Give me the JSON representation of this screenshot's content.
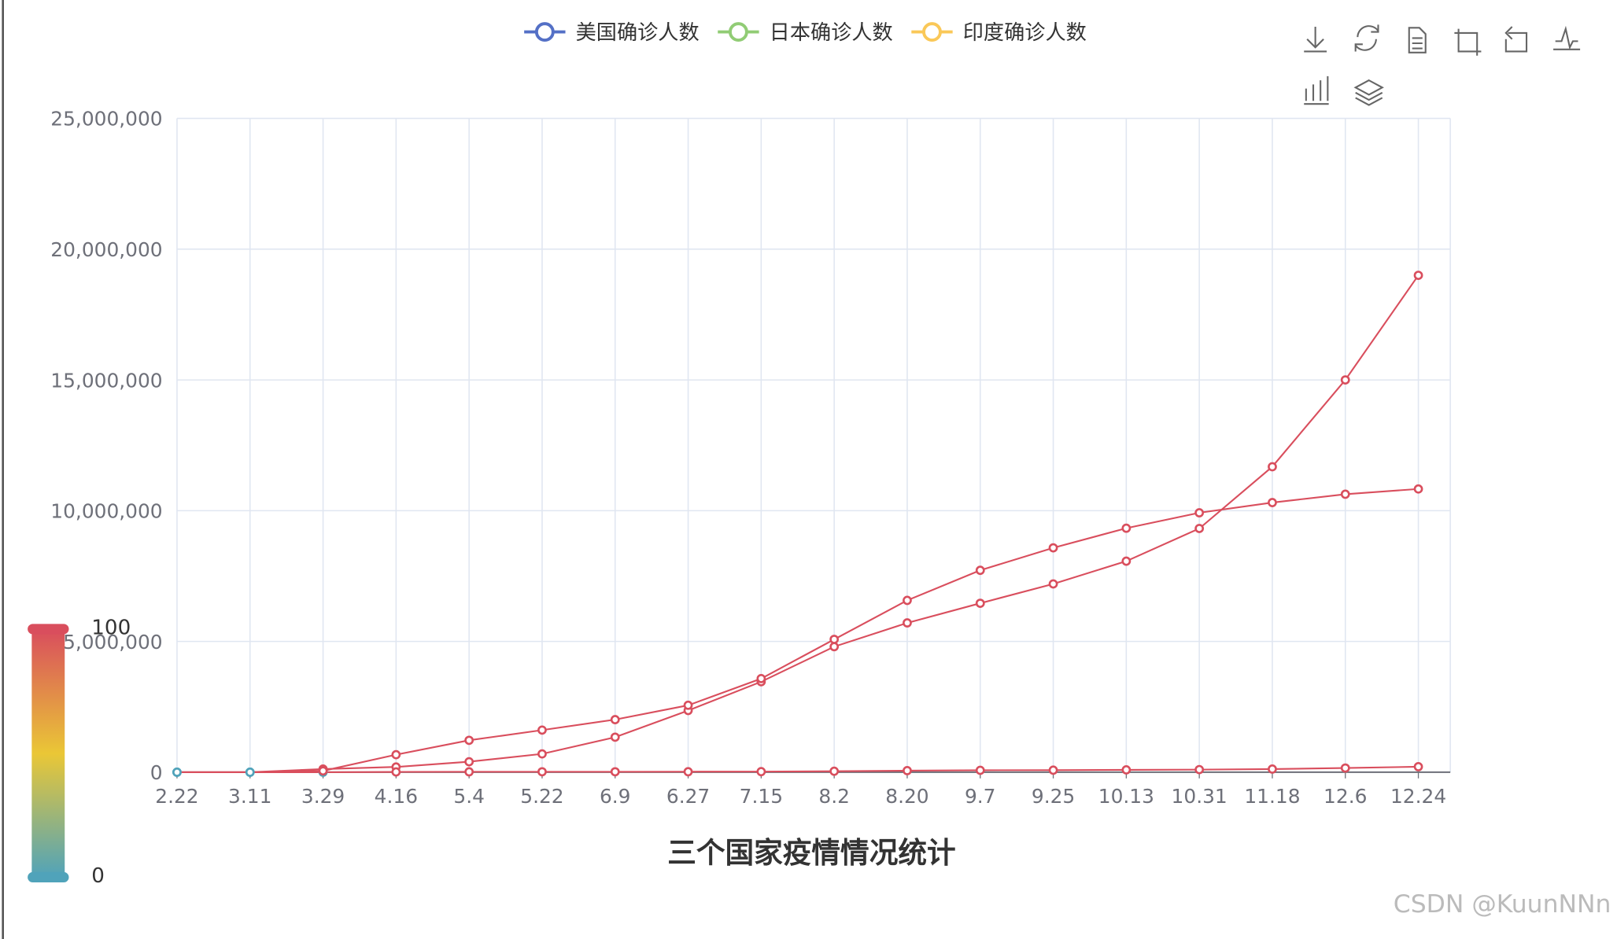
{
  "chart_data": {
    "type": "line",
    "title": "三个国家疫情情况统计",
    "categories": [
      "2.22",
      "3.11",
      "3.29",
      "4.16",
      "5.4",
      "5.22",
      "6.9",
      "6.27",
      "7.15",
      "8.2",
      "8.20",
      "9.7",
      "9.25",
      "10.13",
      "10.31",
      "11.18",
      "12.6",
      "12.24"
    ],
    "series": [
      {
        "name": "美国确诊人数",
        "color": "#5470c6",
        "values": [
          0,
          0,
          120000,
          200000,
          400000,
          700000,
          1340000,
          2360000,
          3460000,
          4800000,
          5710000,
          6460000,
          7200000,
          8070000,
          9320000,
          11680000,
          15000000,
          19000000
        ]
      },
      {
        "name": "日本确诊人数",
        "color": "#91cc75",
        "values": [
          0,
          0,
          0,
          10000,
          15000,
          17000,
          17000,
          18000,
          22000,
          37000,
          60000,
          73000,
          78000,
          90000,
          100000,
          120000,
          160000,
          210000
        ]
      },
      {
        "name": "印度确诊人数",
        "color": "#fac858",
        "values": [
          0,
          0,
          50000,
          670000,
          1220000,
          1610000,
          2010000,
          2560000,
          3580000,
          5080000,
          6570000,
          7720000,
          8580000,
          9330000,
          9920000,
          10310000,
          10630000,
          10830000
        ]
      }
    ],
    "ylim": [
      0,
      25000000
    ],
    "yticks": [
      0,
      {
        "value": 5000000,
        "label": "5,000,000"
      },
      {
        "value": 10000000,
        "label": "10,000,000"
      },
      {
        "value": 15000000,
        "label": "15,000,000"
      },
      {
        "value": 20000000,
        "label": "20,000,000"
      },
      {
        "value": 25000000,
        "label": "25,000,000"
      }
    ],
    "grid": true,
    "legend_position": "top",
    "visual_map": {
      "min": 0,
      "max": 100,
      "colors": [
        "#50a3ba",
        "#eac736",
        "#d94e5d"
      ]
    },
    "watermark": "CSDN @KuunNNn"
  }
}
